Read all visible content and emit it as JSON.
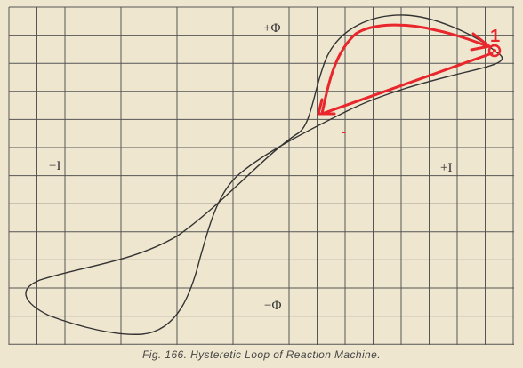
{
  "axis_labels": {
    "plus_phi": "+Φ",
    "minus_phi": "−Φ",
    "minus_i": "−I",
    "plus_i": "+I"
  },
  "marker": {
    "label": "1",
    "minus_mark": "-",
    "color": "#e8262c"
  },
  "caption": "Fig. 166.  Hysteretic Loop of Reaction Machine.",
  "colors": {
    "paper": "#efe6cf",
    "grid": "#4a4a4a",
    "curve": "#333333",
    "annotation": "#e8262c"
  }
}
